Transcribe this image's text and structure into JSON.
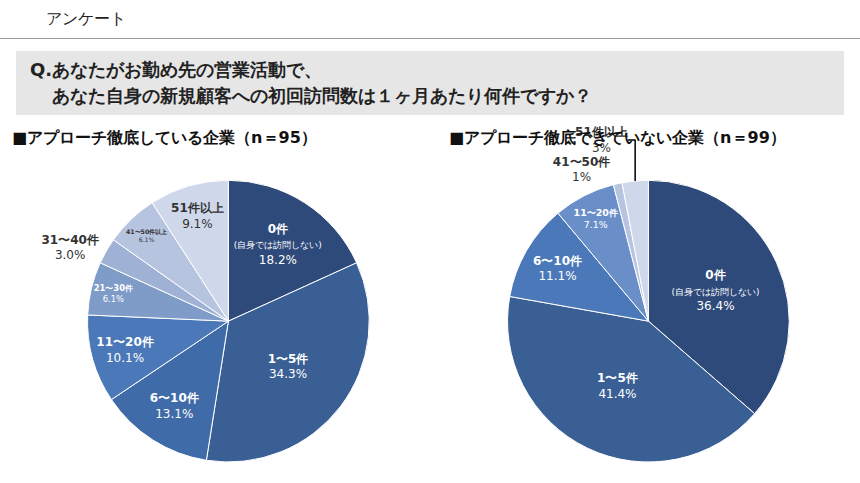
{
  "header": "アンケート",
  "question": [
    "Q.あなたがお勤め先の営業活動で、",
    "あなた自身の新規顧客への初回訪問数は１ヶ月あたり何件ですか？"
  ],
  "chart_data": [
    {
      "type": "pie",
      "title": "■アプローチ徹底している企業（n＝95）",
      "categories": [
        "0件\n(自身では訪問しない)",
        "1〜5件",
        "6〜10件",
        "11〜20件",
        "21〜30件",
        "31〜40件",
        "41〜50件以上",
        "51件以上"
      ],
      "values": [
        18.2,
        34.3,
        13.1,
        10.1,
        6.1,
        3.0,
        6.1,
        9.1
      ],
      "value_labels": [
        "18.2%",
        "34.3%",
        "13.1%",
        "10.1%",
        "6.1%",
        "3.0%",
        "6.1%",
        "9.1%"
      ],
      "colors": [
        "#2e4a7a",
        "#3a5f95",
        "#3f6ba8",
        "#4a78b8",
        "#7f9bc8",
        "#9fb2d6",
        "#b7c4e0",
        "#cfd8ea"
      ],
      "data_labels": true
    },
    {
      "type": "pie",
      "title": "■アプローチ徹底できていない企業（n＝99）",
      "categories": [
        "0件\n(自身では訪問しない)",
        "1〜5件",
        "6〜10件",
        "11〜20件",
        "41〜50件",
        "51件以上"
      ],
      "values": [
        36.4,
        41.4,
        11.1,
        7.1,
        1,
        3
      ],
      "value_labels": [
        "36.4%",
        "41.4%",
        "11.1%",
        "7.1%",
        "1%",
        "3%"
      ],
      "colors": [
        "#2e4a7a",
        "#3a5f95",
        "#4a78b8",
        "#6a8fc8",
        "#b7c4e0",
        "#cfd8ea"
      ],
      "data_labels": true
    }
  ]
}
